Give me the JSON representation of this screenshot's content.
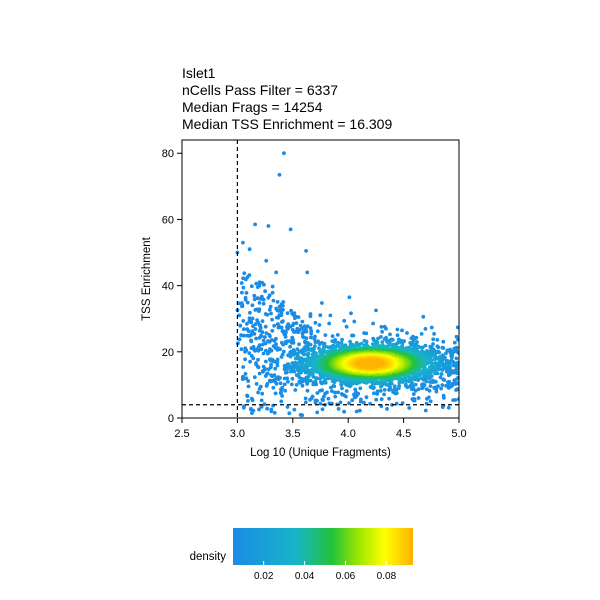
{
  "chart_data": {
    "type": "scatter",
    "title_lines": [
      "Islet1",
      "nCells Pass Filter = 6337",
      "Median Frags = 14254",
      "Median TSS Enrichment = 16.309"
    ],
    "xlabel": "Log 10 (Unique Fragments)",
    "ylabel": "TSS Enrichment",
    "xlim": [
      2.5,
      5.0
    ],
    "ylim": [
      0,
      84
    ],
    "x_ticks": [
      "2.5",
      "3.0",
      "3.5",
      "4.0",
      "4.5",
      "5.0"
    ],
    "y_ticks": [
      "0",
      "20",
      "40",
      "60",
      "80"
    ],
    "grid": false,
    "reference_lines": [
      {
        "orientation": "vertical",
        "value": 3.0,
        "style": "dashed"
      },
      {
        "orientation": "horizontal",
        "value": 4,
        "style": "dashed"
      }
    ],
    "point_color_by": "density",
    "density_center": {
      "x": 4.2,
      "y": 16.5
    },
    "outlier_points": [
      {
        "x": 3.42,
        "y": 80
      },
      {
        "x": 3.38,
        "y": 73.5
      },
      {
        "x": 3.16,
        "y": 58.5
      },
      {
        "x": 3.28,
        "y": 58
      },
      {
        "x": 3.48,
        "y": 57
      },
      {
        "x": 3.05,
        "y": 53
      },
      {
        "x": 3.11,
        "y": 51
      },
      {
        "x": 3.62,
        "y": 50.5
      },
      {
        "x": 3.0,
        "y": 50
      },
      {
        "x": 3.26,
        "y": 47.5
      },
      {
        "x": 3.63,
        "y": 44
      },
      {
        "x": 3.09,
        "y": 42.5
      },
      {
        "x": 3.35,
        "y": 44
      },
      {
        "x": 3.2,
        "y": 41
      }
    ],
    "legend": {
      "title": "density",
      "placement": "bottom",
      "ticks": [
        "0.02",
        "0.04",
        "0.06",
        "0.08"
      ],
      "tick_values": [
        0.02,
        0.04,
        0.06,
        0.08
      ],
      "range": [
        0.005,
        0.093
      ],
      "colors": [
        "#1a8be6",
        "#17b4c8",
        "#23c23a",
        "#9fe600",
        "#ffff00",
        "#ffb300"
      ]
    }
  }
}
